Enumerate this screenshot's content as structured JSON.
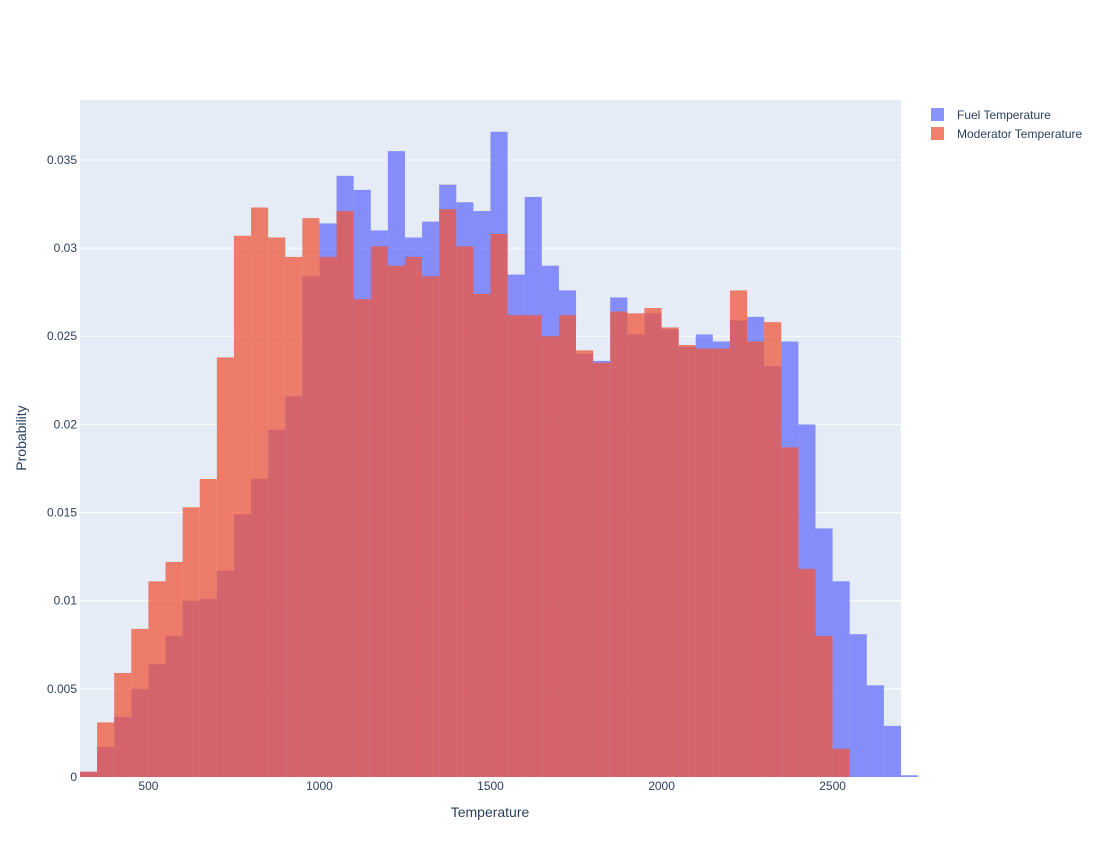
{
  "chart_data": {
    "type": "bar",
    "barmode": "overlay",
    "title": "",
    "xlabel": "Temperature",
    "ylabel": "Probability",
    "xlim": [
      300,
      2700
    ],
    "ylim": [
      0,
      0.0384
    ],
    "xticks": [
      500,
      1000,
      1500,
      2000,
      2500
    ],
    "xtick_labels": [
      "500",
      "1000",
      "1500",
      "2000",
      "2500"
    ],
    "yticks": [
      0,
      0.005,
      0.01,
      0.015,
      0.02,
      0.025,
      0.03,
      0.035
    ],
    "ytick_labels": [
      "0",
      "0.005",
      "0.01",
      "0.015",
      "0.02",
      "0.025",
      "0.03",
      "0.035"
    ],
    "grid": true,
    "legend_position": "top-right",
    "bin_start": 300,
    "bin_width": 50,
    "series": [
      {
        "name": "Fuel Temperature",
        "color": "#636efa",
        "values": [
          0.0003,
          0.0017,
          0.0034,
          0.005,
          0.0064,
          0.008,
          0.01,
          0.0101,
          0.0117,
          0.0149,
          0.0169,
          0.0197,
          0.0216,
          0.0284,
          0.0314,
          0.0341,
          0.0333,
          0.031,
          0.0355,
          0.0306,
          0.0315,
          0.0336,
          0.0326,
          0.0321,
          0.0366,
          0.0285,
          0.0329,
          0.029,
          0.0276,
          0.024,
          0.0236,
          0.0272,
          0.0251,
          0.0263,
          0.0254,
          0.0244,
          0.0251,
          0.0247,
          0.0259,
          0.0261,
          0.0233,
          0.0247,
          0.02,
          0.0141,
          0.0111,
          0.0081,
          0.0052,
          0.0029,
          0.0001
        ]
      },
      {
        "name": "Moderator Temperature",
        "color": "#ef553b",
        "values": [
          0.0003,
          0.0031,
          0.0059,
          0.0084,
          0.0111,
          0.0122,
          0.0153,
          0.0169,
          0.0238,
          0.0307,
          0.0323,
          0.0306,
          0.0295,
          0.0317,
          0.0295,
          0.0321,
          0.0271,
          0.0301,
          0.029,
          0.0295,
          0.0284,
          0.0322,
          0.0301,
          0.0274,
          0.0308,
          0.0262,
          0.0262,
          0.025,
          0.0262,
          0.0242,
          0.0235,
          0.0264,
          0.0263,
          0.0266,
          0.0255,
          0.0245,
          0.0243,
          0.0243,
          0.0276,
          0.0247,
          0.0258,
          0.0187,
          0.0118,
          0.008,
          0.0016,
          0.0,
          0.0,
          0.0,
          0.0
        ]
      }
    ]
  }
}
